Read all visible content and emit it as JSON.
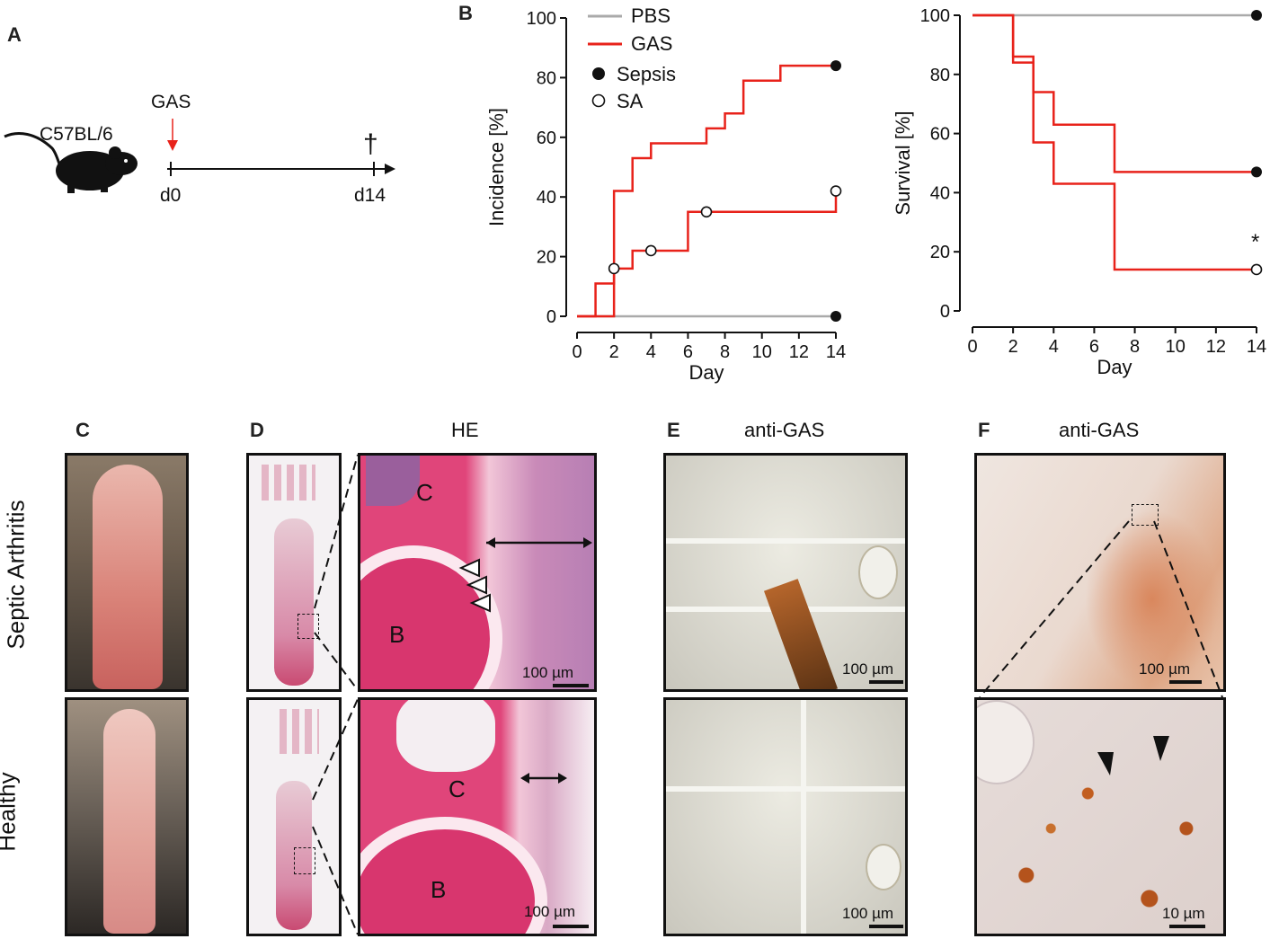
{
  "panels": {
    "A": {
      "letter": "A",
      "mouse_strain": "C57BL/6",
      "injection": "GAS",
      "day_start": "d0",
      "day_end": "d14",
      "endpoint_symbol": "†"
    },
    "B": {
      "letter": "B"
    },
    "C": {
      "letter": "C"
    },
    "D": {
      "letter": "D",
      "stain": "HE",
      "label_C": "C",
      "label_B": "B",
      "scale": "100 µm"
    },
    "E": {
      "letter": "E",
      "stain": "anti-GAS",
      "scale": "100 µm"
    },
    "F": {
      "letter": "F",
      "stain": "anti-GAS",
      "scale_top": "100 µm",
      "scale_bottom": "10 µm"
    }
  },
  "row_labels": {
    "top": "Septic Arthritis",
    "bottom": "Healthy"
  },
  "legend": {
    "pbs": "PBS",
    "gas": "GAS",
    "sepsis": "Sepsis",
    "sa": "SA"
  },
  "colors": {
    "pbs": "#aaaaaa",
    "gas": "#e8221a",
    "he_pink": "#e0457a",
    "dab_brown": "#b5652b"
  },
  "chart_data": [
    {
      "type": "line",
      "step": true,
      "xlabel": "Day",
      "ylabel": "Incidence [%]",
      "xlim": [
        0,
        14
      ],
      "ylim": [
        0,
        100
      ],
      "xticks": [
        0,
        2,
        4,
        6,
        8,
        10,
        12,
        14
      ],
      "yticks": [
        0,
        20,
        40,
        60,
        80,
        100
      ],
      "series": [
        {
          "name": "PBS",
          "color": "#aaaaaa",
          "x": [
            0,
            14
          ],
          "y": [
            0,
            0
          ],
          "end_marker": "filled"
        },
        {
          "name": "GAS",
          "color": "#e8221a",
          "endpoint": "Sepsis",
          "x": [
            0,
            2,
            3,
            4,
            7,
            8,
            9,
            11,
            14
          ],
          "y": [
            0,
            42,
            53,
            58,
            63,
            68,
            79,
            84,
            84
          ],
          "end_marker": "filled"
        },
        {
          "name": "GAS",
          "color": "#e8221a",
          "endpoint": "SA",
          "x": [
            0,
            1,
            2,
            3,
            6,
            14
          ],
          "y": [
            0,
            11,
            16,
            22,
            35,
            42
          ],
          "open_markers": [
            [
              2,
              16
            ],
            [
              4,
              22
            ],
            [
              7,
              35
            ],
            [
              14,
              42
            ]
          ]
        }
      ]
    },
    {
      "type": "line",
      "step": true,
      "xlabel": "Day",
      "ylabel": "Survival [%]",
      "xlim": [
        0,
        14
      ],
      "ylim": [
        0,
        100
      ],
      "xticks": [
        0,
        2,
        4,
        6,
        8,
        10,
        12,
        14
      ],
      "yticks": [
        0,
        20,
        40,
        60,
        80,
        100
      ],
      "annotation": "*",
      "series": [
        {
          "name": "PBS",
          "color": "#aaaaaa",
          "x": [
            0,
            14
          ],
          "y": [
            100,
            100
          ],
          "end_marker": "filled"
        },
        {
          "name": "GAS",
          "color": "#e8221a",
          "endpoint": "Sepsis",
          "x": [
            0,
            2,
            3,
            4,
            7,
            14
          ],
          "y": [
            100,
            84,
            74,
            63,
            47,
            47
          ],
          "end_marker": "filled"
        },
        {
          "name": "GAS",
          "color": "#e8221a",
          "endpoint": "SA",
          "x": [
            0,
            2,
            3,
            4,
            7,
            14
          ],
          "y": [
            100,
            86,
            57,
            43,
            14,
            14
          ],
          "end_marker": "open"
        }
      ]
    }
  ]
}
